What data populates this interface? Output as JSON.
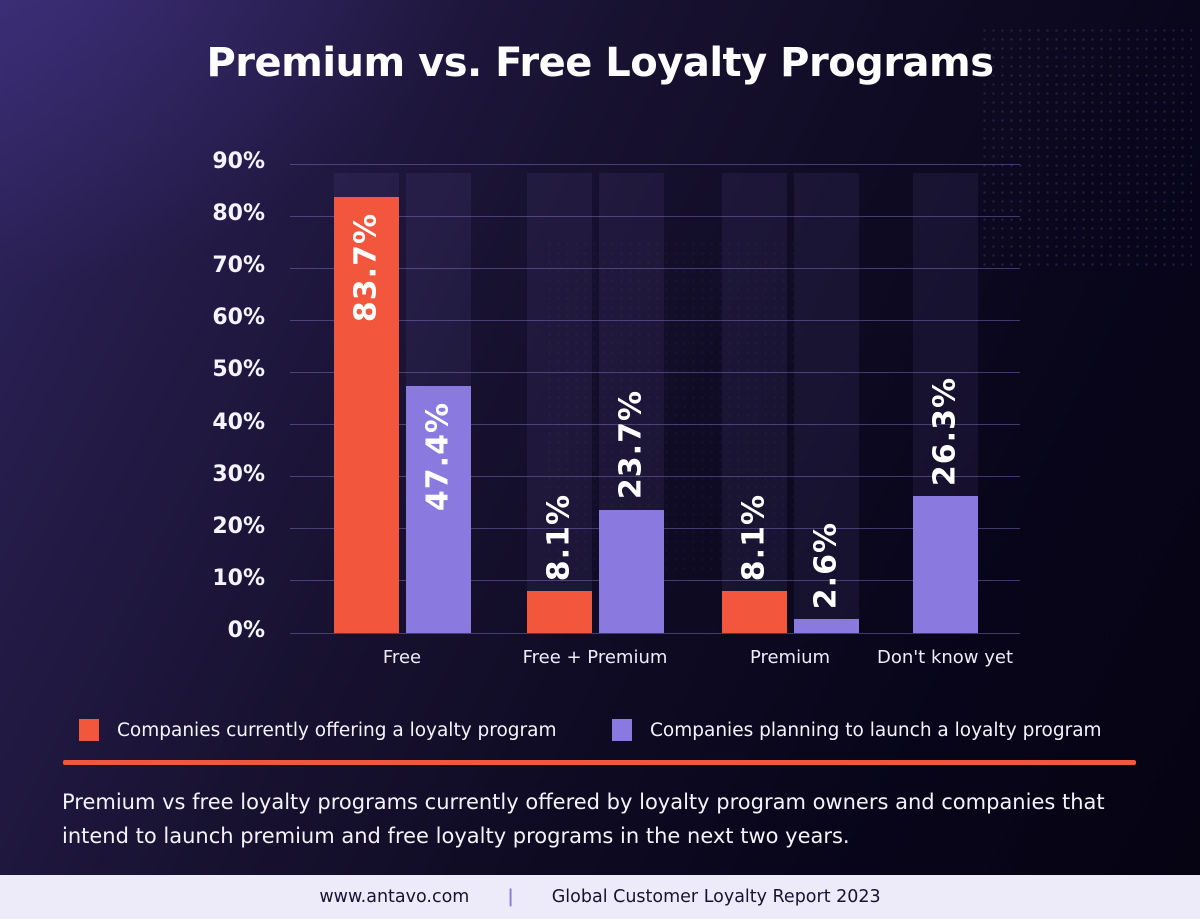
{
  "title": "Premium vs. Free Loyalty Programs",
  "chart_data": {
    "type": "bar",
    "categories": [
      "Free",
      "Free + Premium",
      "Premium",
      "Don't know yet"
    ],
    "series": [
      {
        "name": "Companies currently offering a loyalty program",
        "color": "#f2573d",
        "values": [
          83.7,
          8.1,
          8.1,
          null
        ],
        "labels": [
          "83.7%",
          "8.1%",
          "8.1%",
          null
        ]
      },
      {
        "name": "Companies planning to launch a loyalty program",
        "color": "#8a7ae0",
        "values": [
          47.4,
          23.7,
          2.6,
          26.3
        ],
        "labels": [
          "47.4%",
          "23.7%",
          "2.6%",
          "26.3%"
        ]
      }
    ],
    "y_ticks": [
      "90%",
      "80%",
      "70%",
      "60%",
      "50%",
      "40%",
      "30%",
      "20%",
      "10%",
      "0%"
    ],
    "ylim": [
      0,
      90
    ],
    "grid": true,
    "legend_position": "bottom",
    "value_label_rotation": "vertical"
  },
  "legend": {
    "items": [
      {
        "label": "Companies currently offering a loyalty program",
        "color": "#f2573d"
      },
      {
        "label": "Companies planning to launch a loyalty program",
        "color": "#8a7ae0"
      }
    ]
  },
  "caption": "Premium vs free loyalty programs currently offered by loyalty program owners and companies that intend to launch premium and free loyalty programs in the next two years.",
  "footer": {
    "site": "www.antavo.com",
    "separator": "|",
    "report": "Global Customer Loyalty Report 2023"
  },
  "colors": {
    "accent_red": "#f2573d",
    "accent_purple": "#8a7ae0",
    "background_top": "#2f2560",
    "background_bottom": "#060412",
    "gridline": "#7a6dbc",
    "footer_background": "#edeafa",
    "footer_text": "#191331",
    "footer_separator": "#8b7cdf"
  }
}
